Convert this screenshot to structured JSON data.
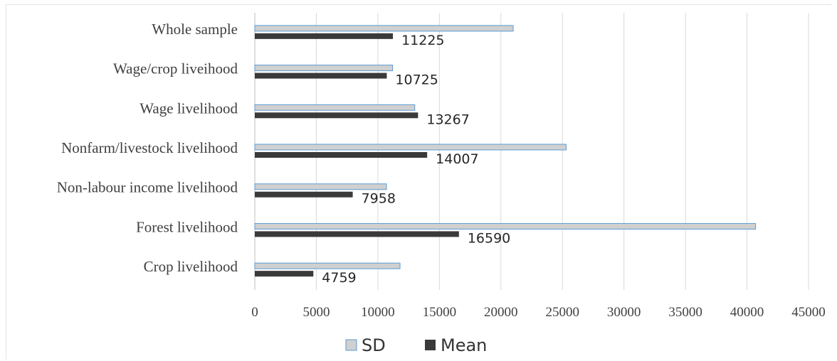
{
  "chart_data": {
    "type": "bar",
    "orientation": "horizontal",
    "categories": [
      "Whole sample",
      "Wage/crop liveihood",
      "Wage livelihood",
      "Nonfarm/livestock livelihood",
      "Non-labour income livelihood",
      "Forest livelihood",
      "Crop livelihood"
    ],
    "series": [
      {
        "name": "SD",
        "values": [
          21000,
          11200,
          13000,
          25300,
          10700,
          40700,
          11800
        ],
        "color": "#d0d0d0",
        "stroke": "#5b9bd5"
      },
      {
        "name": "Mean",
        "values": [
          11225,
          10725,
          13267,
          14007,
          7958,
          16590,
          4759
        ],
        "color": "#3a3a3a"
      }
    ],
    "data_labels": [
      "11225",
      "10725",
      "13267",
      "14007",
      "7958",
      "16590",
      "4759"
    ],
    "xlim": [
      0,
      45000
    ],
    "x_ticks": [
      "0",
      "5000",
      "10000",
      "15000",
      "20000",
      "25000",
      "30000",
      "35000",
      "40000",
      "45000"
    ],
    "grid": "vertical",
    "legend": {
      "position": "bottom",
      "entries": [
        "SD",
        "Mean"
      ]
    },
    "title": "",
    "xlabel": "",
    "ylabel": ""
  }
}
